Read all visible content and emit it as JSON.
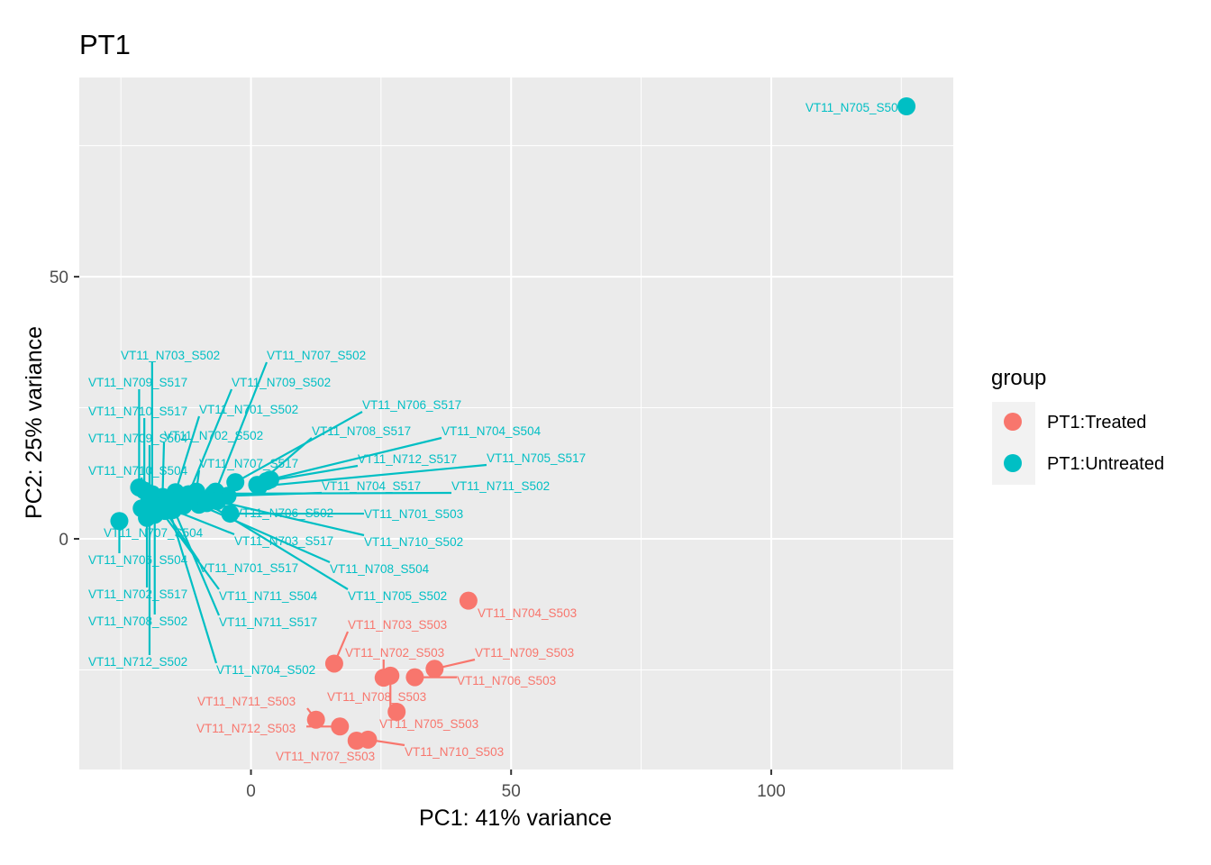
{
  "chart_data": {
    "type": "scatter",
    "title": "PT1",
    "xlabel": "PC1: 41% variance",
    "ylabel": "PC2: 25% variance",
    "xlim": [
      -33,
      135
    ],
    "ylim": [
      -44,
      88
    ],
    "x_ticks": [
      0,
      50,
      100
    ],
    "y_ticks": [
      0,
      50
    ],
    "grid": true,
    "legend": {
      "title": "group",
      "position": "right",
      "entries": [
        {
          "label": "PT1:Treated",
          "color": "#F8766D"
        },
        {
          "label": "PT1:Untreated",
          "color": "#00BFC4"
        }
      ]
    },
    "series": [
      {
        "name": "PT1:Treated",
        "color": "#F8766D",
        "points": [
          {
            "label": "VT11_N704_S503",
            "x": 41.8,
            "y": -11.8
          },
          {
            "label": "VT11_N703_S503",
            "x": 16.0,
            "y": -23.8
          },
          {
            "label": "VT11_N702_S503",
            "x": 25.5,
            "y": -26.5
          },
          {
            "label": "VT11_N709_S503",
            "x": 35.3,
            "y": -24.8
          },
          {
            "label": "VT11_N706_S503",
            "x": 31.5,
            "y": -26.4
          },
          {
            "label": "VT11_N708_S503",
            "x": 28.0,
            "y": -33.0
          },
          {
            "label": "VT11_N711_S503",
            "x": 12.5,
            "y": -34.5
          },
          {
            "label": "VT11_N712_S503",
            "x": 17.1,
            "y": -35.8
          },
          {
            "label": "VT11_N705_S503",
            "x": 26.8,
            "y": -26.1
          },
          {
            "label": "VT11_N707_S503",
            "x": 20.3,
            "y": -38.5
          },
          {
            "label": "VT11_N710_S503",
            "x": 22.5,
            "y": -38.3
          }
        ]
      },
      {
        "name": "PT1:Untreated",
        "color": "#00BFC4",
        "points": [
          {
            "label": "VT11_N705_S504",
            "x": 126.0,
            "y": 82.5
          },
          {
            "label": "VT11_N703_S502",
            "x": -19.0,
            "y": 8.5
          },
          {
            "label": "VT11_N707_S502",
            "x": -6.8,
            "y": 9.0
          },
          {
            "label": "VT11_N709_S517",
            "x": -21.5,
            "y": 9.8
          },
          {
            "label": "VT11_N709_S502",
            "x": -12.0,
            "y": 8.5
          },
          {
            "label": "VT11_N710_S517",
            "x": -20.5,
            "y": 9.2
          },
          {
            "label": "VT11_N701_S502",
            "x": -14.5,
            "y": 8.9
          },
          {
            "label": "VT11_N706_S517",
            "x": -3.0,
            "y": 10.8
          },
          {
            "label": "VT11_N702_S502",
            "x": -17.0,
            "y": 8.0
          },
          {
            "label": "VT11_N708_S517",
            "x": 1.2,
            "y": 10.3
          },
          {
            "label": "VT11_N704_S504",
            "x": 3.7,
            "y": 11.3
          },
          {
            "label": "VT11_N709_S504",
            "x": -19.5,
            "y": 7.0
          },
          {
            "label": "VT11_N712_S517",
            "x": 3.0,
            "y": 11.0
          },
          {
            "label": "VT11_N705_S517",
            "x": 1.5,
            "y": 10.0
          },
          {
            "label": "VT11_N707_S517",
            "x": -10.5,
            "y": 9.0
          },
          {
            "label": "VT11_N710_S504",
            "x": -21.0,
            "y": 5.8
          },
          {
            "label": "VT11_N704_S517",
            "x": -4.5,
            "y": 8.2
          },
          {
            "label": "VT11_N711_S502",
            "x": -7.2,
            "y": 8.6
          },
          {
            "label": "VT11_N706_S502",
            "x": -13.0,
            "y": 6.3
          },
          {
            "label": "VT11_N701_S503",
            "x": -4.0,
            "y": 4.8
          },
          {
            "label": "VT11_N707_S504",
            "x": -20.0,
            "y": 4.0
          },
          {
            "label": "VT11_N703_S517",
            "x": -15.0,
            "y": 5.5
          },
          {
            "label": "VT11_N710_S502",
            "x": -6.5,
            "y": 7.2
          },
          {
            "label": "VT11_N706_S504",
            "x": -25.3,
            "y": 3.4
          },
          {
            "label": "VT11_N701_S517",
            "x": -16.5,
            "y": 5.3
          },
          {
            "label": "VT11_N708_S504",
            "x": -10.0,
            "y": 6.5
          },
          {
            "label": "VT11_N711_S504",
            "x": -17.5,
            "y": 5.6
          },
          {
            "label": "VT11_N702_S517",
            "x": -20.0,
            "y": 6.3
          },
          {
            "label": "VT11_N705_S502",
            "x": -8.5,
            "y": 6.8
          },
          {
            "label": "VT11_N708_S502",
            "x": -18.5,
            "y": 4.6
          },
          {
            "label": "VT11_N711_S517",
            "x": -15.5,
            "y": 7.2
          },
          {
            "label": "VT11_N712_S502",
            "x": -19.5,
            "y": 7.8
          },
          {
            "label": "VT11_N704_S502",
            "x": -16.0,
            "y": 6.5
          }
        ]
      }
    ]
  }
}
